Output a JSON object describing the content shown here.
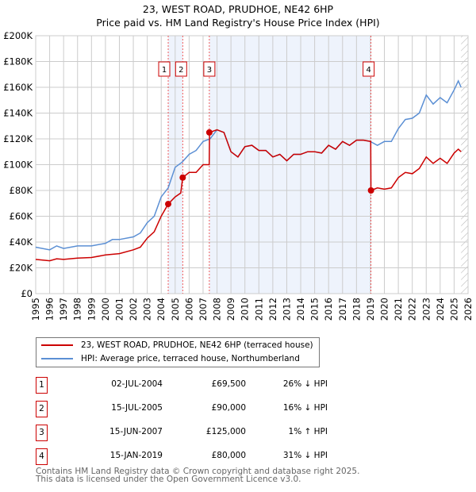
{
  "chart_data": {
    "type": "line",
    "title": "23, WEST ROAD, PRUDHOE, NE42 6HP",
    "subtitle": "Price paid vs. HM Land Registry's House Price Index (HPI)",
    "xlim": [
      1995,
      2026
    ],
    "ylim": [
      0,
      200000
    ],
    "yticks": [
      "£0",
      "£20K",
      "£40K",
      "£60K",
      "£80K",
      "£100K",
      "£120K",
      "£140K",
      "£160K",
      "£180K",
      "£200K"
    ],
    "xticks": [
      "1995",
      "1996",
      "1997",
      "1998",
      "1999",
      "2000",
      "2001",
      "2002",
      "2003",
      "2004",
      "2005",
      "2006",
      "2007",
      "2008",
      "2009",
      "2010",
      "2011",
      "2012",
      "2013",
      "2014",
      "2015",
      "2016",
      "2017",
      "2018",
      "2019",
      "2020",
      "2021",
      "2022",
      "2023",
      "2024",
      "2025",
      "2026"
    ],
    "grid": true,
    "series": [
      {
        "name": "23, WEST ROAD, PRUDHOE, NE42 6HP (terraced house)",
        "color": "#cc0000",
        "x": [
          1995,
          1996,
          1996.5,
          1997,
          1998,
          1999,
          2000,
          2001,
          2002,
          2002.5,
          2003,
          2003.5,
          2004,
          2004.5,
          2005,
          2005.4,
          2005.54,
          2006,
          2006.5,
          2007,
          2007.44,
          2007.46,
          2008,
          2008.5,
          2009,
          2009.5,
          2010,
          2010.5,
          2011,
          2011.5,
          2012,
          2012.5,
          2013,
          2013.5,
          2014,
          2014.5,
          2015,
          2015.5,
          2016,
          2016.5,
          2017,
          2017.5,
          2018,
          2018.5,
          2019.02,
          2019.04,
          2019.5,
          2020,
          2020.5,
          2021,
          2021.5,
          2022,
          2022.5,
          2023,
          2023.5,
          2024,
          2024.5,
          2025,
          2025.3,
          2025.5
        ],
        "y": [
          26500,
          25500,
          27000,
          26500,
          27500,
          28000,
          30000,
          31000,
          34000,
          36000,
          43000,
          48000,
          60000,
          69500,
          75000,
          78000,
          90000,
          94000,
          94000,
          100000,
          100000,
          125000,
          127000,
          125000,
          110000,
          106000,
          114000,
          115000,
          111000,
          111000,
          106000,
          108000,
          103000,
          108000,
          108000,
          110000,
          110000,
          109000,
          115000,
          112000,
          118000,
          115000,
          119000,
          119000,
          118000,
          80000,
          82000,
          81000,
          82000,
          90000,
          94000,
          93000,
          97000,
          106000,
          101000,
          105000,
          101000,
          109000,
          112000,
          110000
        ]
      },
      {
        "name": "HPI: Average price, terraced house, Northumberland",
        "color": "#5b8fd4",
        "x": [
          1995,
          1996,
          1996.5,
          1997,
          1998,
          1999,
          2000,
          2000.5,
          2001,
          2002,
          2002.5,
          2003,
          2003.5,
          2004,
          2004.5,
          2005,
          2005.5,
          2006,
          2006.5,
          2007,
          2007.5,
          2008,
          2008.5,
          2009,
          2009.5,
          2010,
          2010.5,
          2011,
          2011.5,
          2012,
          2012.5,
          2013,
          2013.5,
          2014,
          2014.5,
          2015,
          2015.5,
          2016,
          2016.5,
          2017,
          2017.5,
          2018,
          2018.5,
          2019,
          2019.5,
          2020,
          2020.5,
          2021,
          2021.5,
          2022,
          2022.5,
          2023,
          2023.5,
          2024,
          2024.5,
          2025,
          2025.3,
          2025.5
        ],
        "y": [
          36000,
          34000,
          37000,
          35000,
          37000,
          37000,
          39000,
          42000,
          42000,
          44000,
          47000,
          55000,
          60000,
          75000,
          82000,
          98000,
          102000,
          108000,
          111000,
          118000,
          120000,
          127000,
          125000,
          110000,
          106000,
          114000,
          115000,
          111000,
          111000,
          106000,
          108000,
          103000,
          108000,
          108000,
          110000,
          110000,
          109000,
          115000,
          112000,
          118000,
          115000,
          119000,
          119000,
          118000,
          115000,
          118000,
          118000,
          128000,
          135000,
          136000,
          140000,
          154000,
          147000,
          152000,
          148000,
          158000,
          165000,
          160000
        ]
      }
    ],
    "sales": [
      {
        "label": "1",
        "x": 2004.5,
        "y": 69500
      },
      {
        "label": "2",
        "x": 2005.54,
        "y": 90000
      },
      {
        "label": "3",
        "x": 2007.45,
        "y": 125000
      },
      {
        "label": "4",
        "x": 2019.04,
        "y": 80000
      }
    ],
    "shaded_ranges": [
      [
        2004.5,
        2005.54
      ],
      [
        2007.45,
        2019.04
      ]
    ],
    "forecast_start": 2025.5
  },
  "legend": {
    "red": "23, WEST ROAD, PRUDHOE, NE42 6HP (terraced house)",
    "blue": "HPI: Average price, terraced house, Northumberland"
  },
  "transactions": [
    {
      "num": "1",
      "date": "02-JUL-2004",
      "price": "£69,500",
      "hpi": "26% ↓ HPI"
    },
    {
      "num": "2",
      "date": "15-JUL-2005",
      "price": "£90,000",
      "hpi": "16% ↓ HPI"
    },
    {
      "num": "3",
      "date": "15-JUN-2007",
      "price": "£125,000",
      "hpi": "1% ↑ HPI"
    },
    {
      "num": "4",
      "date": "15-JAN-2019",
      "price": "£80,000",
      "hpi": "31% ↓ HPI"
    }
  ],
  "footer": {
    "line1": "Contains HM Land Registry data © Crown copyright and database right 2025.",
    "line2": "This data is licensed under the Open Government Licence v3.0."
  }
}
